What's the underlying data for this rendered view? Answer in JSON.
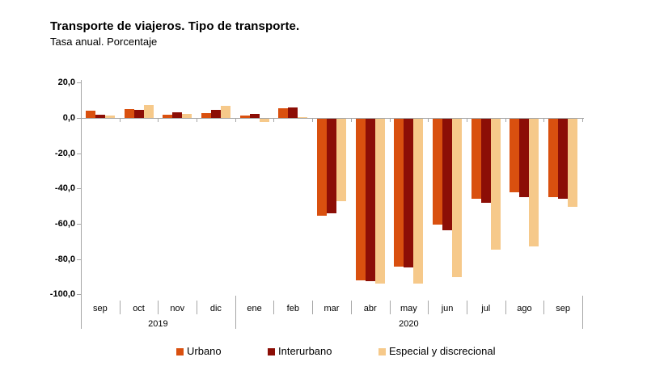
{
  "header": {
    "title": "Transporte de viajeros. Tipo de transporte.",
    "subtitle": "Tasa anual. Porcentaje"
  },
  "chart_data": {
    "type": "bar",
    "title": "Transporte de viajeros. Tipo de transporte.",
    "subtitle": "Tasa anual. Porcentaje",
    "categories": [
      "sep",
      "oct",
      "nov",
      "dic",
      "ene",
      "feb",
      "mar",
      "abr",
      "may",
      "jun",
      "jul",
      "ago",
      "sep"
    ],
    "year_groups": [
      {
        "label": "2019",
        "from": 0,
        "to": 3
      },
      {
        "label": "2020",
        "from": 4,
        "to": 12
      }
    ],
    "series": [
      {
        "name": "Urbano",
        "color": "#d9500f",
        "values": [
          4.3,
          5.0,
          2.0,
          2.8,
          1.5,
          5.6,
          -55.0,
          -91.6,
          -83.6,
          -59.8,
          -45.2,
          -41.6,
          -44.3
        ]
      },
      {
        "name": "Interurbano",
        "color": "#8c0e06",
        "values": [
          2.0,
          4.6,
          3.2,
          4.6,
          2.4,
          6.1,
          -53.6,
          -92.0,
          -84.5,
          -63.0,
          -47.5,
          -44.3,
          -45.2
        ]
      },
      {
        "name": "Especial y discrecional",
        "color": "#f6c98a",
        "values": [
          1.2,
          7.4,
          2.4,
          6.9,
          -1.9,
          0.4,
          -46.5,
          -93.4,
          -93.6,
          -90.0,
          -74.0,
          -72.3,
          -49.8
        ]
      }
    ],
    "y_tick_values": [
      20,
      0,
      -20,
      -40,
      -60,
      -80,
      -100
    ],
    "y_tick_labels": [
      "20,0",
      "0,0",
      "-20,0",
      "-40,0",
      "-60,0",
      "-80,0",
      "-100,0"
    ],
    "ylim": [
      -100,
      20
    ],
    "xlabel": "",
    "ylabel": "",
    "grid": false,
    "legend_position": "bottom",
    "axis_color": "#a6a6a6",
    "background_color": "#ffffff"
  }
}
